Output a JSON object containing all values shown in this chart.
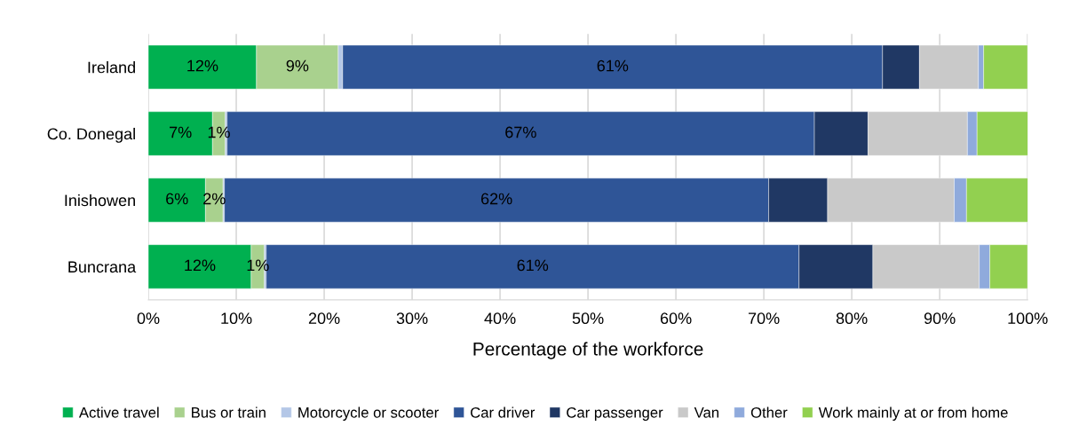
{
  "chart_data": {
    "type": "bar",
    "orientation": "horizontal",
    "stacked": true,
    "categories": [
      "Ireland",
      "Co. Donegal",
      "Inishowen",
      "Buncrana"
    ],
    "series": [
      {
        "name": "Active travel",
        "color": "#00b050",
        "values": [
          12.3,
          7.3,
          6.5,
          11.7
        ],
        "value_labels": [
          "12%",
          "7%",
          "6%",
          "12%"
        ]
      },
      {
        "name": "Bus or train",
        "color": "#a9d18e",
        "values": [
          9.3,
          1.45,
          2.0,
          1.5
        ],
        "value_labels": [
          "9%",
          "1%",
          "2%",
          "1%"
        ]
      },
      {
        "name": "Motorcycle or scooter",
        "color": "#b4c7e7",
        "values": [
          0.5,
          0.2,
          0.15,
          0.2
        ]
      },
      {
        "name": "Car driver",
        "color": "#2f5597",
        "values": [
          61.4,
          66.8,
          61.9,
          60.6
        ],
        "value_labels": [
          "61%",
          "67%",
          "62%",
          "61%"
        ]
      },
      {
        "name": "Car passenger",
        "color": "#203864",
        "values": [
          4.2,
          6.1,
          6.7,
          8.4
        ]
      },
      {
        "name": "Van",
        "color": "#c9c9c9",
        "values": [
          6.7,
          11.3,
          14.4,
          12.1
        ]
      },
      {
        "name": "Other",
        "color": "#8faadc",
        "values": [
          0.6,
          1.1,
          1.4,
          1.2
        ]
      },
      {
        "name": "Work mainly at or from home",
        "color": "#92d050",
        "values": [
          5.0,
          5.8,
          7.0,
          4.3
        ]
      }
    ],
    "xlim": [
      0,
      100
    ],
    "xticks": [
      {
        "value": 0,
        "label": "0%"
      },
      {
        "value": 10,
        "label": "10%"
      },
      {
        "value": 20,
        "label": "20%"
      },
      {
        "value": 30,
        "label": "30%"
      },
      {
        "value": 40,
        "label": "40%"
      },
      {
        "value": 50,
        "label": "50%"
      },
      {
        "value": 60,
        "label": "60%"
      },
      {
        "value": 70,
        "label": "70%"
      },
      {
        "value": 80,
        "label": "80%"
      },
      {
        "value": 90,
        "label": "90%"
      },
      {
        "value": 100,
        "label": "100%"
      }
    ],
    "xlabel": "Percentage of the workforce",
    "grid": "x",
    "legend": "bottom"
  }
}
